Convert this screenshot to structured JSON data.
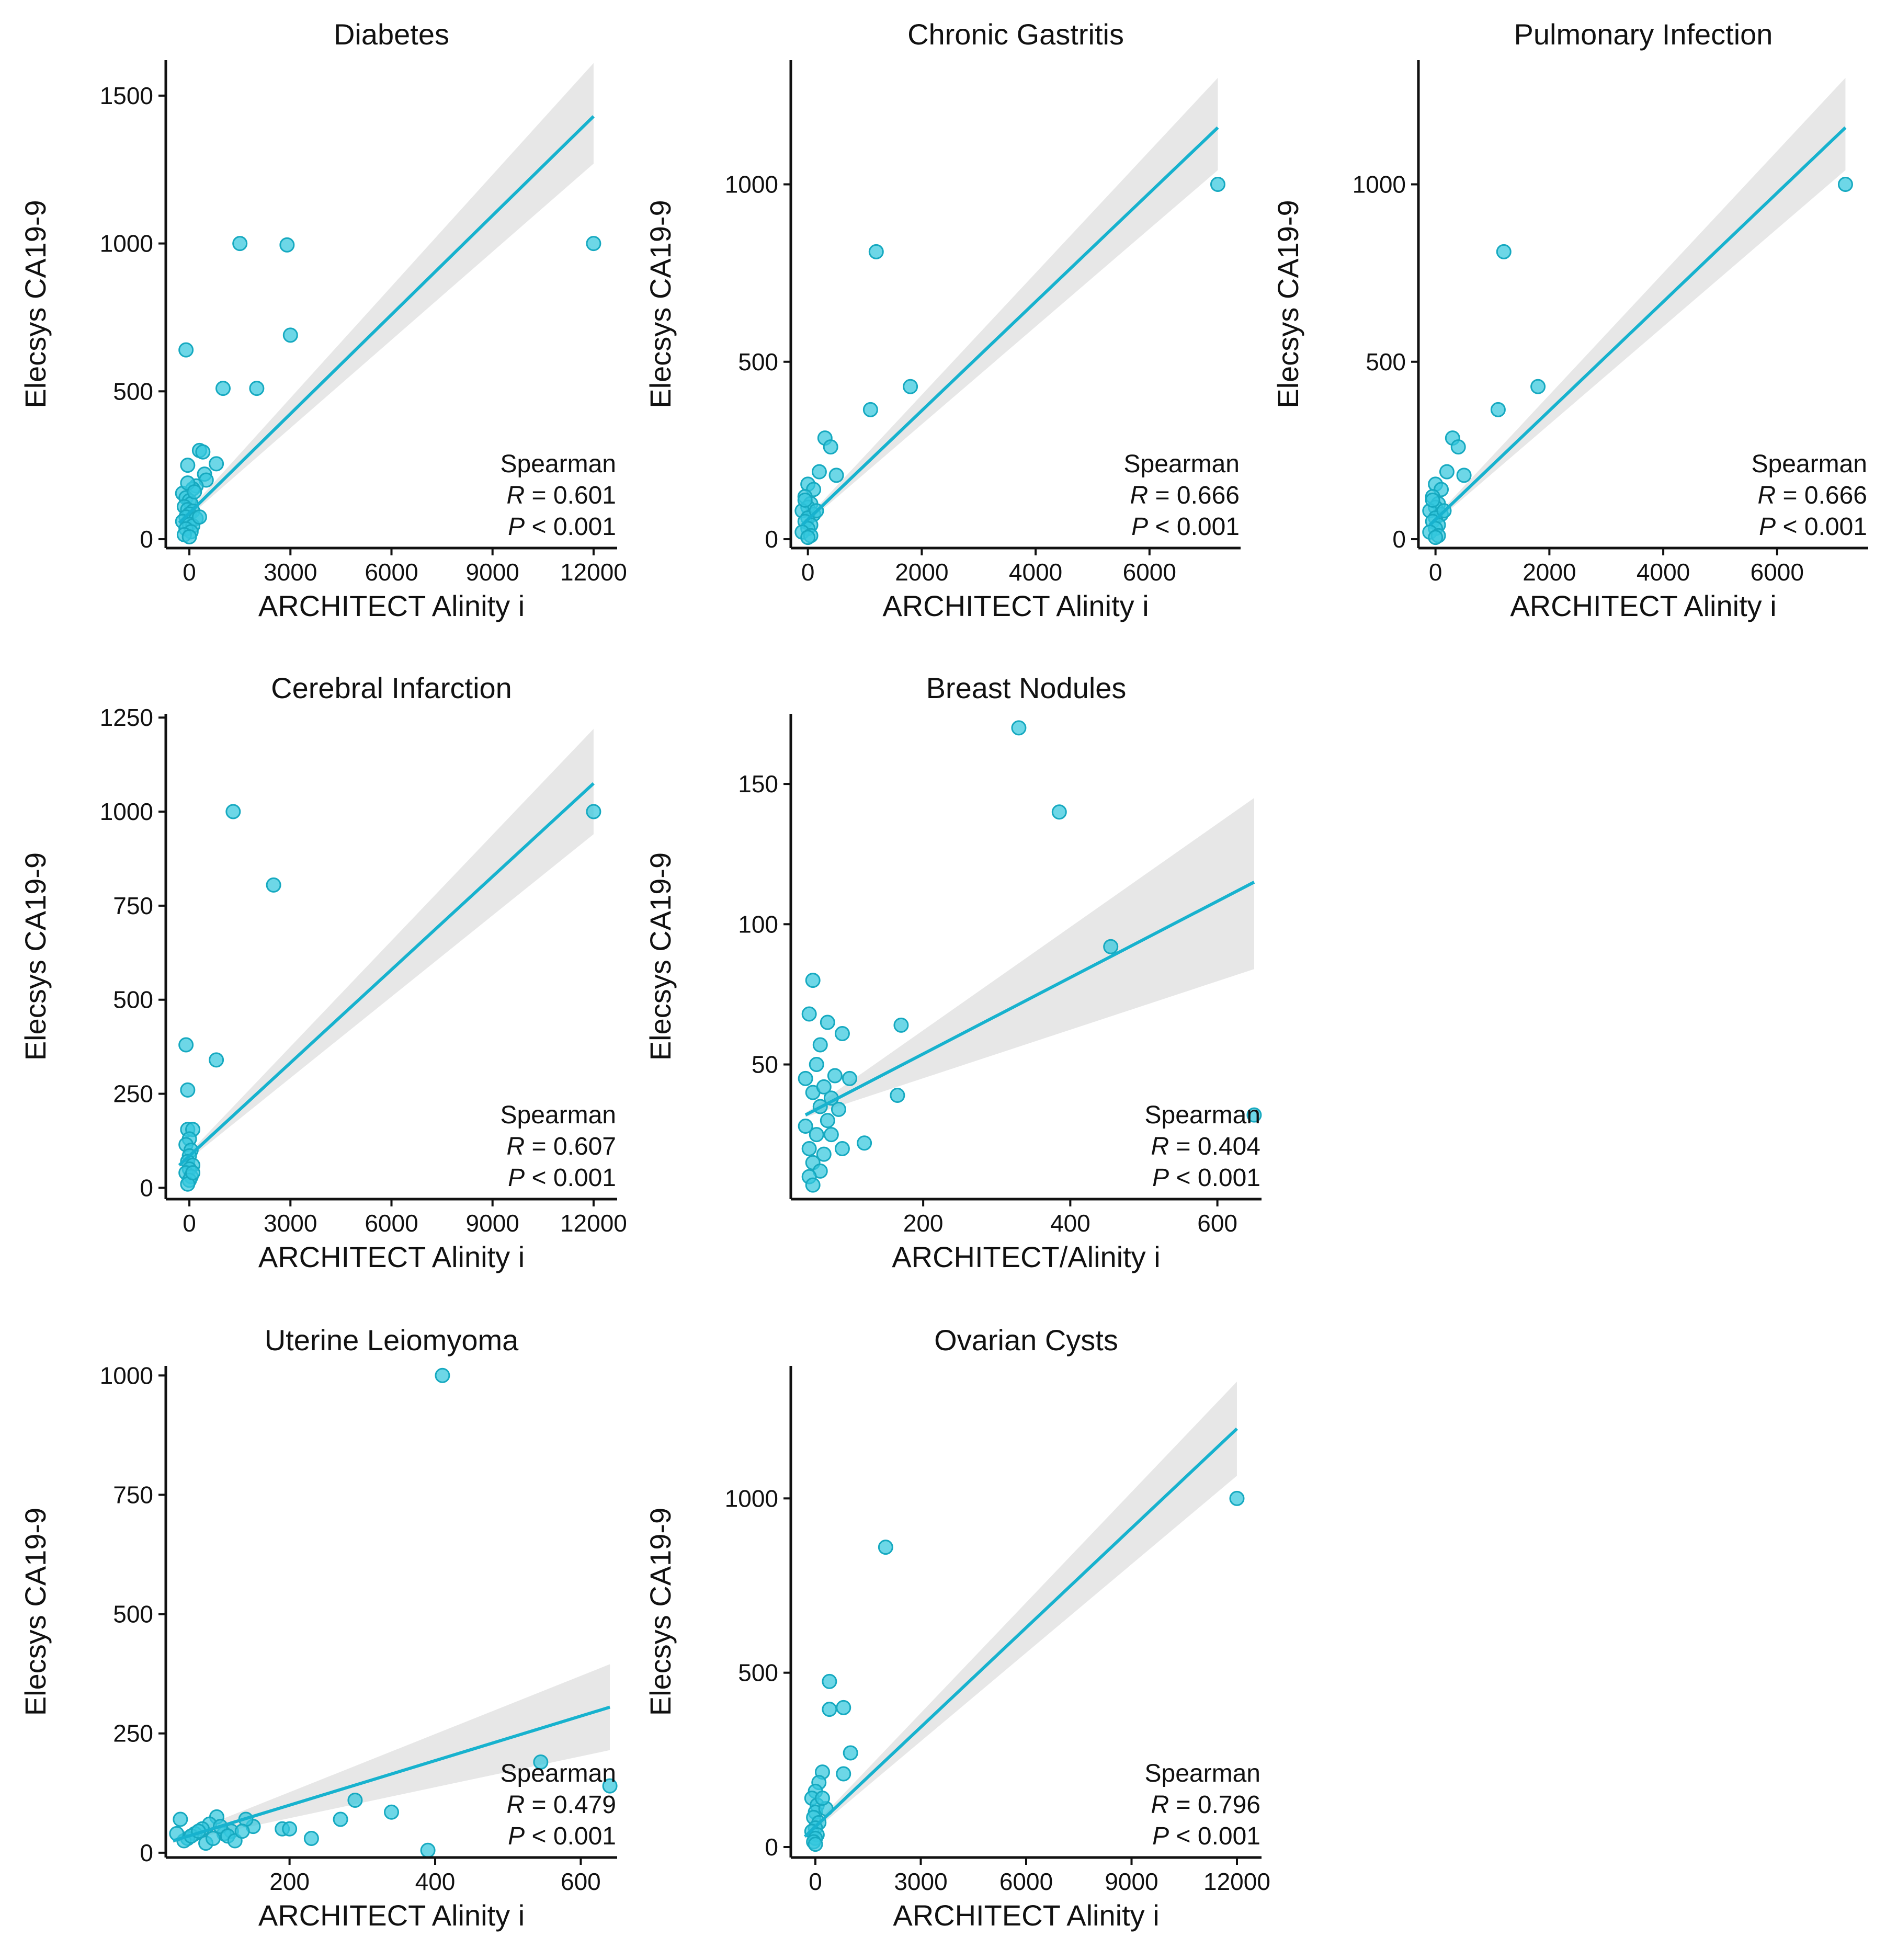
{
  "colors": {
    "point": "#35C8DE",
    "line": "#17B2CE",
    "band": "#C9C9C9"
  },
  "chart_data": [
    {
      "type": "scatter",
      "title": "Diabetes",
      "xlabel": "ARCHITECT Alinity i",
      "ylabel": "Elecsys CA19-9",
      "xlim": [
        -700,
        12700
      ],
      "ylim": [
        -30,
        1620
      ],
      "xticks": [
        0,
        3000,
        6000,
        9000,
        12000
      ],
      "xtick_labels": [
        "0",
        "3000",
        "6000",
        "9000",
        "12000"
      ],
      "yticks": [
        0,
        500,
        1000,
        1500
      ],
      "ytick_labels": [
        "0",
        "500",
        "1000",
        "1500"
      ],
      "fit": {
        "x0": -300,
        "y0": 55,
        "x1": 12000,
        "y1": 1430,
        "ci_lo_end": 1270,
        "ci_hi_end": 1610
      },
      "stats": {
        "method": "Spearman",
        "r_prefix": "R",
        "r_value": " = 0.601",
        "p_prefix": "P",
        "p_value": " < 0.001"
      },
      "points": [
        [
          12000,
          1000
        ],
        [
          1500,
          1000
        ],
        [
          2900,
          995
        ],
        [
          3000,
          690
        ],
        [
          -100,
          640
        ],
        [
          1000,
          510
        ],
        [
          2000,
          510
        ],
        [
          300,
          300
        ],
        [
          400,
          295
        ],
        [
          800,
          255
        ],
        [
          -50,
          250
        ],
        [
          450,
          220
        ],
        [
          500,
          200
        ],
        [
          200,
          180
        ],
        [
          100,
          170
        ],
        [
          -200,
          155
        ],
        [
          -100,
          140
        ],
        [
          0,
          130
        ],
        [
          50,
          120
        ],
        [
          -150,
          110
        ],
        [
          -50,
          100
        ],
        [
          100,
          95
        ],
        [
          0,
          85
        ],
        [
          -100,
          75
        ],
        [
          200,
          70
        ],
        [
          -200,
          60
        ],
        [
          0,
          50
        ],
        [
          100,
          45
        ],
        [
          -100,
          35
        ],
        [
          50,
          25
        ],
        [
          -150,
          15
        ],
        [
          0,
          8
        ],
        [
          300,
          75
        ],
        [
          -50,
          190
        ],
        [
          150,
          160
        ]
      ]
    },
    {
      "type": "scatter",
      "title": "Chronic Gastritis",
      "xlabel": "ARCHITECT Alinity i",
      "ylabel": "Elecsys CA19-9",
      "xlim": [
        -300,
        7600
      ],
      "ylim": [
        -25,
        1350
      ],
      "xticks": [
        0,
        2000,
        4000,
        6000
      ],
      "xtick_labels": [
        "0",
        "2000",
        "4000",
        "6000"
      ],
      "yticks": [
        0,
        500,
        1000
      ],
      "ytick_labels": [
        "0",
        "500",
        "1000"
      ],
      "fit": {
        "x0": -100,
        "y0": 40,
        "x1": 7200,
        "y1": 1160,
        "ci_lo_end": 1040,
        "ci_hi_end": 1300
      },
      "stats": {
        "method": "Spearman",
        "r_prefix": "R",
        "r_value": " = 0.666",
        "p_prefix": "P",
        "p_value": " < 0.001"
      },
      "points": [
        [
          7200,
          1000
        ],
        [
          1200,
          810
        ],
        [
          1800,
          430
        ],
        [
          1100,
          365
        ],
        [
          300,
          285
        ],
        [
          400,
          260
        ],
        [
          500,
          180
        ],
        [
          200,
          190
        ],
        [
          0,
          155
        ],
        [
          100,
          140
        ],
        [
          -50,
          120
        ],
        [
          50,
          100
        ],
        [
          0,
          90
        ],
        [
          -100,
          80
        ],
        [
          100,
          70
        ],
        [
          0,
          60
        ],
        [
          -50,
          50
        ],
        [
          50,
          40
        ],
        [
          0,
          30
        ],
        [
          -100,
          20
        ],
        [
          50,
          10
        ],
        [
          0,
          5
        ],
        [
          150,
          80
        ],
        [
          -50,
          110
        ]
      ]
    },
    {
      "type": "scatter",
      "title": "Pulmonary Infection",
      "xlabel": "ARCHITECT Alinity i",
      "ylabel": "Elecsys CA19-9",
      "xlim": [
        -300,
        7600
      ],
      "ylim": [
        -25,
        1350
      ],
      "xticks": [
        0,
        2000,
        4000,
        6000
      ],
      "xtick_labels": [
        "0",
        "2000",
        "4000",
        "6000"
      ],
      "yticks": [
        0,
        500,
        1000
      ],
      "ytick_labels": [
        "0",
        "500",
        "1000"
      ],
      "fit": {
        "x0": -100,
        "y0": 40,
        "x1": 7200,
        "y1": 1160,
        "ci_lo_end": 1040,
        "ci_hi_end": 1300
      },
      "stats": {
        "method": "Spearman",
        "r_prefix": "R",
        "r_value": " = 0.666",
        "p_prefix": "P",
        "p_value": " < 0.001"
      },
      "points": [
        [
          7200,
          1000
        ],
        [
          1200,
          810
        ],
        [
          1800,
          430
        ],
        [
          1100,
          365
        ],
        [
          300,
          285
        ],
        [
          400,
          260
        ],
        [
          500,
          180
        ],
        [
          200,
          190
        ],
        [
          0,
          155
        ],
        [
          100,
          140
        ],
        [
          -50,
          120
        ],
        [
          50,
          100
        ],
        [
          0,
          90
        ],
        [
          -100,
          80
        ],
        [
          100,
          70
        ],
        [
          0,
          60
        ],
        [
          -50,
          50
        ],
        [
          50,
          40
        ],
        [
          0,
          30
        ],
        [
          -100,
          20
        ],
        [
          50,
          10
        ],
        [
          0,
          5
        ],
        [
          150,
          80
        ],
        [
          -50,
          110
        ]
      ]
    },
    {
      "type": "scatter",
      "title": "Cerebral Infarction",
      "xlabel": "ARCHITECT Alinity i",
      "ylabel": "Elecsys CA19-9",
      "xlim": [
        -700,
        12700
      ],
      "ylim": [
        -30,
        1260
      ],
      "xticks": [
        0,
        3000,
        6000,
        9000,
        12000
      ],
      "xtick_labels": [
        "0",
        "3000",
        "6000",
        "9000",
        "12000"
      ],
      "yticks": [
        0,
        250,
        500,
        750,
        1000,
        1250
      ],
      "ytick_labels": [
        "0",
        "250",
        "500",
        "750",
        "1000",
        "1250"
      ],
      "fit": {
        "x0": -300,
        "y0": 60,
        "x1": 12000,
        "y1": 1075,
        "ci_lo_end": 940,
        "ci_hi_end": 1220
      },
      "stats": {
        "method": "Spearman",
        "r_prefix": "R",
        "r_value": " = 0.607",
        "p_prefix": "P",
        "p_value": " < 0.001"
      },
      "points": [
        [
          12000,
          1000
        ],
        [
          1300,
          1000
        ],
        [
          2500,
          805
        ],
        [
          -100,
          380
        ],
        [
          800,
          340
        ],
        [
          -50,
          260
        ],
        [
          -50,
          155
        ],
        [
          100,
          155
        ],
        [
          0,
          130
        ],
        [
          -100,
          115
        ],
        [
          50,
          100
        ],
        [
          0,
          85
        ],
        [
          -50,
          70
        ],
        [
          100,
          60
        ],
        [
          0,
          50
        ],
        [
          -100,
          40
        ],
        [
          50,
          30
        ],
        [
          0,
          20
        ],
        [
          -50,
          10
        ],
        [
          100,
          40
        ]
      ]
    },
    {
      "type": "scatter",
      "title": "Breast Nodules",
      "xlabel": "ARCHITECT/Alinity i",
      "ylabel": "Elecsys CA19-9",
      "xlim": [
        20,
        660
      ],
      "ylim": [
        2,
        175
      ],
      "xticks": [
        200,
        400,
        600
      ],
      "xtick_labels": [
        "200",
        "400",
        "600"
      ],
      "yticks": [
        50,
        100,
        150
      ],
      "ytick_labels": [
        "50",
        "100",
        "150"
      ],
      "fit": {
        "x0": 40,
        "y0": 32,
        "x1": 650,
        "y1": 115,
        "ci_lo_end": 84,
        "ci_hi_end": 145
      },
      "stats": {
        "method": "Spearman",
        "r_prefix": "R",
        "r_value": " = 0.404",
        "p_prefix": "P",
        "p_value": " < 0.001"
      },
      "points": [
        [
          330,
          170
        ],
        [
          385,
          140
        ],
        [
          455,
          92
        ],
        [
          650,
          32
        ],
        [
          165,
          39
        ],
        [
          170,
          64
        ],
        [
          45,
          68
        ],
        [
          50,
          80
        ],
        [
          70,
          65
        ],
        [
          60,
          57
        ],
        [
          90,
          61
        ],
        [
          100,
          45
        ],
        [
          80,
          46
        ],
        [
          120,
          22
        ],
        [
          85,
          34
        ],
        [
          40,
          45
        ],
        [
          50,
          40
        ],
        [
          60,
          35
        ],
        [
          70,
          30
        ],
        [
          55,
          25
        ],
        [
          45,
          20
        ],
        [
          65,
          18
        ],
        [
          50,
          15
        ],
        [
          60,
          12
        ],
        [
          45,
          10
        ],
        [
          50,
          7
        ],
        [
          75,
          38
        ],
        [
          90,
          20
        ],
        [
          40,
          28
        ],
        [
          55,
          50
        ],
        [
          65,
          42
        ],
        [
          75,
          25
        ]
      ]
    },
    {
      "type": "scatter",
      "title": "Uterine Leiomyoma",
      "xlabel": "ARCHITECT Alinity i",
      "ylabel": "Elecsys CA19-9",
      "xlim": [
        30,
        650
      ],
      "ylim": [
        -10,
        1020
      ],
      "xticks": [
        200,
        400,
        600
      ],
      "xtick_labels": [
        "200",
        "400",
        "600"
      ],
      "yticks": [
        0,
        250,
        500,
        750,
        1000
      ],
      "ytick_labels": [
        "0",
        "250",
        "500",
        "750",
        "1000"
      ],
      "fit": {
        "x0": 40,
        "y0": 25,
        "x1": 640,
        "y1": 305,
        "ci_lo_end": 215,
        "ci_hi_end": 395
      },
      "stats": {
        "method": "Spearman",
        "r_prefix": "R",
        "r_value": " = 0.479",
        "p_prefix": "P",
        "p_value": " < 0.001"
      },
      "points": [
        [
          410,
          1000
        ],
        [
          545,
          190
        ],
        [
          640,
          140
        ],
        [
          290,
          110
        ],
        [
          340,
          85
        ],
        [
          270,
          70
        ],
        [
          390,
          5
        ],
        [
          230,
          30
        ],
        [
          190,
          50
        ],
        [
          200,
          50
        ],
        [
          150,
          55
        ],
        [
          140,
          70
        ],
        [
          120,
          45
        ],
        [
          100,
          75
        ],
        [
          110,
          40
        ],
        [
          90,
          60
        ],
        [
          80,
          50
        ],
        [
          70,
          40
        ],
        [
          60,
          30
        ],
        [
          50,
          70
        ],
        [
          55,
          25
        ],
        [
          65,
          35
        ],
        [
          75,
          45
        ],
        [
          85,
          20
        ],
        [
          95,
          30
        ],
        [
          105,
          55
        ],
        [
          115,
          35
        ],
        [
          125,
          25
        ],
        [
          135,
          45
        ],
        [
          45,
          40
        ]
      ]
    },
    {
      "type": "scatter",
      "title": "Ovarian Cysts",
      "xlabel": "ARCHITECT Alinity i",
      "ylabel": "Elecsys CA19-9",
      "xlim": [
        -700,
        12700
      ],
      "ylim": [
        -30,
        1380
      ],
      "xticks": [
        0,
        3000,
        6000,
        9000,
        12000
      ],
      "xtick_labels": [
        "0",
        "3000",
        "6000",
        "9000",
        "12000"
      ],
      "yticks": [
        0,
        500,
        1000
      ],
      "ytick_labels": [
        "0",
        "500",
        "1000"
      ],
      "fit": {
        "x0": -300,
        "y0": 30,
        "x1": 12000,
        "y1": 1200,
        "ci_lo_end": 1065,
        "ci_hi_end": 1335
      },
      "stats": {
        "method": "Spearman",
        "r_prefix": "R",
        "r_value": " = 0.796",
        "p_prefix": "P",
        "p_value": " < 0.001"
      },
      "points": [
        [
          12000,
          1000
        ],
        [
          2000,
          860
        ],
        [
          400,
          475
        ],
        [
          400,
          395
        ],
        [
          800,
          400
        ],
        [
          1000,
          270
        ],
        [
          800,
          210
        ],
        [
          200,
          215
        ],
        [
          100,
          185
        ],
        [
          0,
          160
        ],
        [
          -100,
          140
        ],
        [
          50,
          120
        ],
        [
          0,
          100
        ],
        [
          -50,
          85
        ],
        [
          100,
          70
        ],
        [
          0,
          55
        ],
        [
          -100,
          45
        ],
        [
          50,
          35
        ],
        [
          0,
          25
        ],
        [
          -50,
          15
        ],
        [
          0,
          8
        ],
        [
          300,
          110
        ],
        [
          200,
          140
        ]
      ]
    }
  ]
}
